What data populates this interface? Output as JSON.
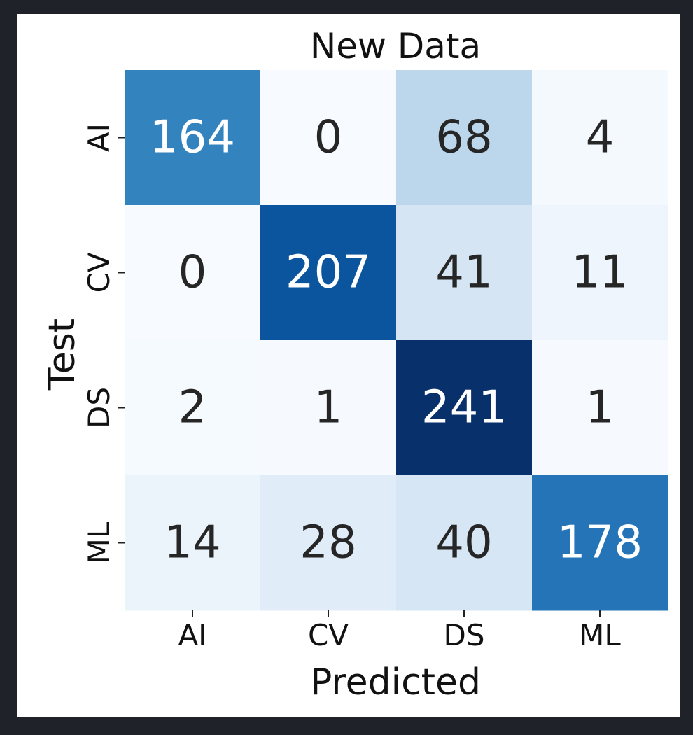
{
  "chart_data": {
    "type": "heatmap",
    "title": "New Data",
    "xlabel": "Predicted",
    "ylabel": "Test",
    "x_categories": [
      "AI",
      "CV",
      "DS",
      "ML"
    ],
    "y_categories": [
      "AI",
      "CV",
      "DS",
      "ML"
    ],
    "values": [
      [
        164,
        0,
        68,
        4
      ],
      [
        0,
        207,
        41,
        11
      ],
      [
        2,
        1,
        241,
        1
      ],
      [
        14,
        28,
        40,
        178
      ]
    ],
    "colormap": "Blues",
    "vmin": 0,
    "vmax": 241,
    "colorbar": false,
    "annotations": true,
    "grid": false
  }
}
